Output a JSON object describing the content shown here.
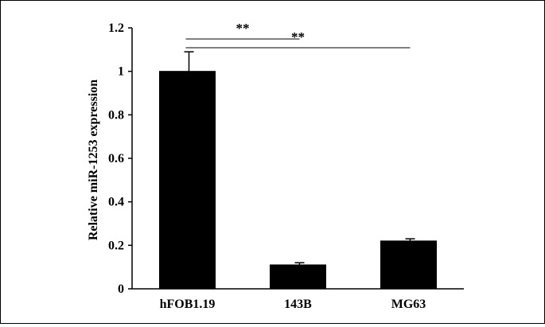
{
  "chart_data": {
    "type": "bar",
    "ylabel": "Relative miR-1253 expression",
    "xlabel": "",
    "ylim": [
      0,
      1.2
    ],
    "yticks": [
      "0",
      "0.2",
      "0.4",
      "0.6",
      "0.8",
      "1",
      "1.2"
    ],
    "ytick_values": [
      0,
      0.2,
      0.4,
      0.6,
      0.8,
      1.0,
      1.2
    ],
    "categories": [
      "hFOB1.19",
      "143B",
      "MG63"
    ],
    "values": [
      1.0,
      0.11,
      0.22
    ],
    "errors": [
      0.09,
      0.01,
      0.01
    ],
    "bar_color": "#000000",
    "significance": [
      {
        "from": "hFOB1.19",
        "to": "143B",
        "label": "**"
      },
      {
        "from": "hFOB1.19",
        "to": "MG63",
        "label": "**"
      }
    ],
    "grid": false,
    "legend": "none"
  }
}
